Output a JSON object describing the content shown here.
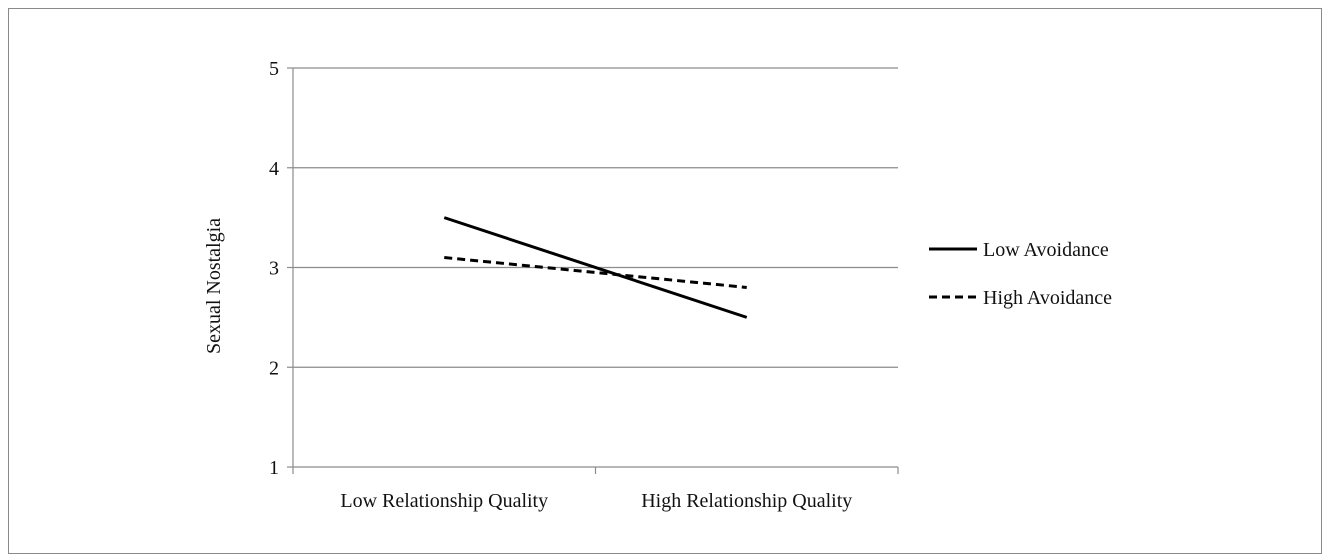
{
  "chart_data": {
    "type": "line",
    "categories": [
      "Low Relationship Quality",
      "High Relationship Quality"
    ],
    "ylabel": "Sexual Nostalgia",
    "ylim": [
      1,
      5
    ],
    "yticks": [
      1,
      2,
      3,
      4,
      5
    ],
    "grid": true,
    "legend_position": "right",
    "series": [
      {
        "name": "Low Avoidance",
        "values": [
          3.5,
          2.5
        ],
        "style": "solid",
        "color": "#000000"
      },
      {
        "name": "High Avoidance",
        "values": [
          3.1,
          2.8
        ],
        "style": "dashed",
        "color": "#000000"
      }
    ]
  }
}
